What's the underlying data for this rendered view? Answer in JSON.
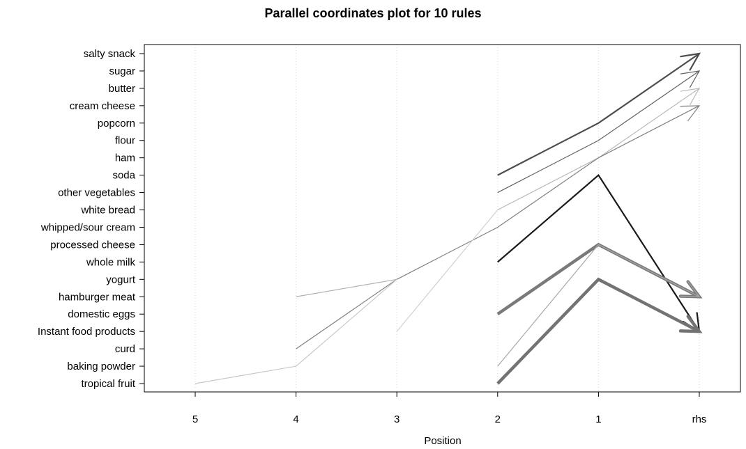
{
  "chart_data": {
    "type": "parallel_coordinates",
    "title": "Parallel coordinates plot for 10 rules",
    "xlabel": "Position",
    "positions": [
      "5",
      "4",
      "3",
      "2",
      "1",
      "rhs"
    ],
    "items": [
      "salty snack",
      "sugar",
      "butter",
      "cream cheese ",
      "popcorn",
      "flour",
      "ham",
      "soda",
      "other vegetables",
      "white bread",
      "whipped/sour cream",
      "processed cheese",
      "whole milk",
      "yogurt",
      "hamburger meat",
      "domestic eggs",
      "Instant food products",
      "curd",
      "baking powder",
      "tropical fruit"
    ],
    "grid": "vertical dotted",
    "rules": [
      {
        "path": [
          null,
          null,
          null,
          "soda",
          "popcorn",
          "salty snack"
        ],
        "color": "#4d4d4d",
        "weight": "medium"
      },
      {
        "path": [
          null,
          null,
          null,
          "other vegetables",
          "flour",
          "sugar"
        ],
        "color": "#606060",
        "weight": "thin"
      },
      {
        "path": [
          null,
          null,
          null,
          "white bread",
          "ham",
          "butter"
        ],
        "color": "#b8b8b8",
        "weight": "thin"
      },
      {
        "path": [
          null,
          "curd",
          "yogurt",
          "whipped/sour cream",
          "ham",
          "cream cheese "
        ],
        "color": "#808080",
        "weight": "thin"
      },
      {
        "path": [
          null,
          null,
          null,
          "whole milk",
          "soda",
          "Instant food products"
        ],
        "color": "#1a1a1a",
        "weight": "medium"
      },
      {
        "path": [
          null,
          null,
          null,
          "domestic eggs",
          "processed cheese",
          "hamburger meat"
        ],
        "color": "#7a7a7a",
        "weight": "heavy"
      },
      {
        "path": [
          null,
          null,
          null,
          "tropical fruit",
          "yogurt",
          "Instant food products"
        ],
        "color": "#737373",
        "weight": "heavy"
      },
      {
        "path": [
          null,
          null,
          null,
          "baking powder",
          "processed cheese",
          "hamburger meat"
        ],
        "color": "#a8a8a8",
        "weight": "thin"
      },
      {
        "path": [
          null,
          "hamburger meat",
          "yogurt",
          null,
          null,
          null
        ],
        "color": "#b0b0b0",
        "weight": "thin"
      },
      {
        "path": [
          "tropical fruit",
          "baking powder",
          "yogurt",
          null,
          null,
          null
        ],
        "color": "#c8c8c8",
        "weight": "thin"
      },
      {
        "path": [
          null,
          null,
          "Instant food products",
          "white bread",
          null,
          null
        ],
        "color": "#d0d0d0",
        "weight": "thin"
      }
    ]
  }
}
